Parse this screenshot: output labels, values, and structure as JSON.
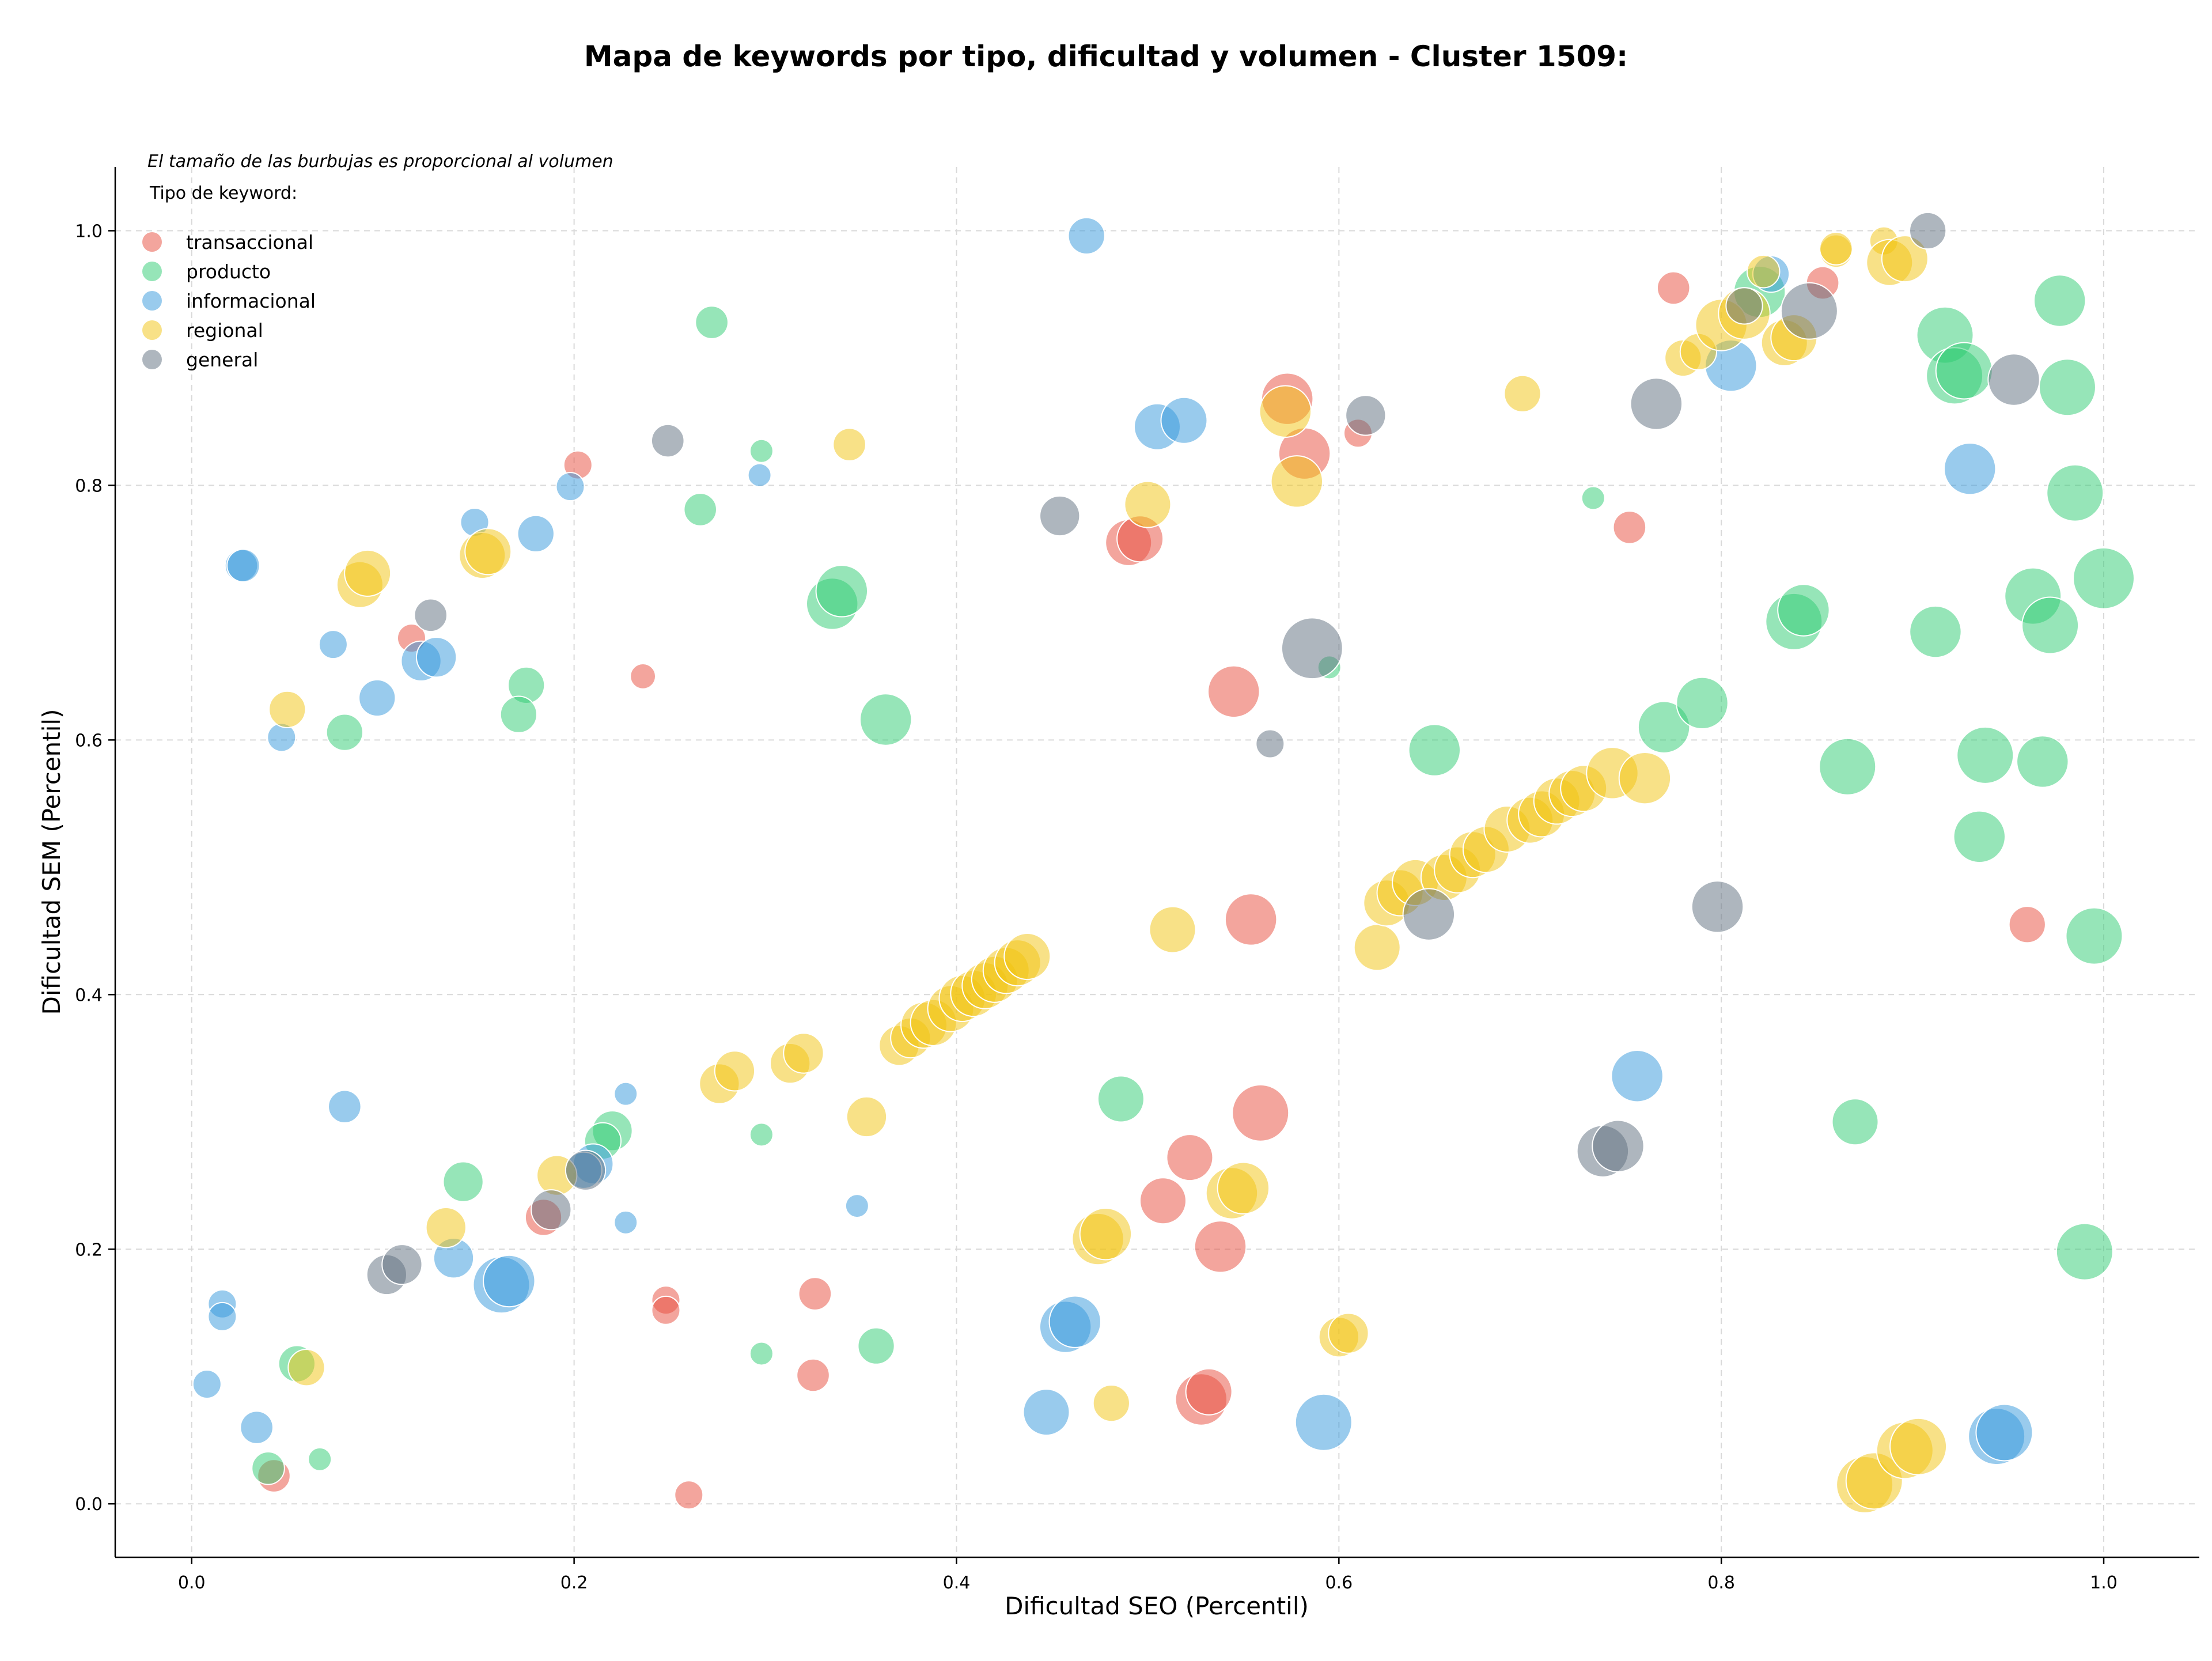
{
  "chart_data": {
    "type": "scatter",
    "title": "Mapa de keywords por tipo, dificultad y volumen - Cluster 1509:",
    "xlabel": "Dificultad SEO (Percentil)",
    "ylabel": "Dificultad SEM (Percentil)",
    "xlim": [
      -0.04,
      1.05
    ],
    "ylim": [
      -0.042,
      1.05
    ],
    "xticks": [
      "0.0",
      "0.2",
      "0.4",
      "0.6",
      "0.8",
      "1.0"
    ],
    "yticks": [
      "0.0",
      "0.2",
      "0.4",
      "0.6",
      "0.8",
      "1.0"
    ],
    "grid": true,
    "size_note": "El tamaño de las burbujas es proporcional al volumen",
    "legend_title": "Tipo de keyword:",
    "legend_position": "top-left",
    "series": [
      {
        "name": "transaccional",
        "color": "#e74c3c",
        "points": [
          [
            0.202,
            0.816,
            1.5
          ],
          [
            0.115,
            0.68,
            1.5
          ],
          [
            0.236,
            0.65,
            1.2
          ],
          [
            0.043,
            0.022,
            2
          ],
          [
            0.184,
            0.225,
            2.5
          ],
          [
            0.248,
            0.16,
            1.5
          ],
          [
            0.248,
            0.152,
            1.5
          ],
          [
            0.326,
            0.165,
            2
          ],
          [
            0.26,
            0.007,
            1.5
          ],
          [
            0.325,
            0.101,
            2
          ],
          [
            0.508,
            0.238,
            4
          ],
          [
            0.522,
            0.272,
            4
          ],
          [
            0.538,
            0.202,
            5
          ],
          [
            0.528,
            0.082,
            5
          ],
          [
            0.532,
            0.088,
            4
          ],
          [
            0.545,
            0.638,
            5
          ],
          [
            0.554,
            0.459,
            5
          ],
          [
            0.559,
            0.307,
            6
          ],
          [
            0.49,
            0.755,
            4
          ],
          [
            0.496,
            0.758,
            4
          ],
          [
            0.573,
            0.868,
            5
          ],
          [
            0.582,
            0.825,
            5
          ],
          [
            0.61,
            0.841,
            1.5
          ],
          [
            0.752,
            0.767,
            2
          ],
          [
            0.775,
            0.955,
            2
          ],
          [
            0.853,
            0.959,
            2
          ],
          [
            0.96,
            0.455,
            2.5
          ]
        ]
      },
      {
        "name": "producto",
        "color": "#2ecc71",
        "points": [
          [
            0.272,
            0.928,
            2
          ],
          [
            0.298,
            0.827,
            1
          ],
          [
            0.266,
            0.781,
            2
          ],
          [
            0.175,
            0.643,
            2.5
          ],
          [
            0.08,
            0.606,
            2.5
          ],
          [
            0.171,
            0.62,
            2.5
          ],
          [
            0.335,
            0.707,
            5
          ],
          [
            0.34,
            0.717,
            5
          ],
          [
            0.363,
            0.616,
            5
          ],
          [
            0.142,
            0.253,
            3
          ],
          [
            0.22,
            0.293,
            3
          ],
          [
            0.215,
            0.285,
            2.5
          ],
          [
            0.298,
            0.29,
            1
          ],
          [
            0.298,
            0.118,
            1
          ],
          [
            0.358,
            0.124,
            2.5
          ],
          [
            0.055,
            0.11,
            2.5
          ],
          [
            0.04,
            0.028,
            2
          ],
          [
            0.067,
            0.035,
            1
          ],
          [
            0.486,
            0.318,
            4
          ],
          [
            0.595,
            0.657,
            1
          ],
          [
            0.65,
            0.592,
            5
          ],
          [
            0.733,
            0.79,
            1
          ],
          [
            0.77,
            0.61,
            5
          ],
          [
            0.79,
            0.629,
            5
          ],
          [
            0.82,
            0.952,
            5
          ],
          [
            0.838,
            0.693,
            6
          ],
          [
            0.843,
            0.702,
            5
          ],
          [
            0.866,
            0.579,
            6
          ],
          [
            0.87,
            0.3,
            4
          ],
          [
            0.912,
            0.685,
            5
          ],
          [
            0.917,
            0.918,
            6
          ],
          [
            0.922,
            0.886,
            6
          ],
          [
            0.927,
            0.89,
            6
          ],
          [
            0.935,
            0.524,
            5
          ],
          [
            0.938,
            0.588,
            6
          ],
          [
            0.963,
            0.713,
            6
          ],
          [
            0.968,
            0.583,
            5
          ],
          [
            0.972,
            0.69,
            6
          ],
          [
            0.977,
            0.945,
            5
          ],
          [
            0.981,
            0.877,
            6
          ],
          [
            0.985,
            0.794,
            6
          ],
          [
            0.99,
            0.198,
            6
          ],
          [
            0.995,
            0.446,
            6
          ],
          [
            1.0,
            0.727,
            7
          ]
        ]
      },
      {
        "name": "informacional",
        "color": "#3498db",
        "points": [
          [
            0.026,
            0.737,
            2
          ],
          [
            0.027,
            0.737,
            2
          ],
          [
            0.074,
            0.675,
            1.5
          ],
          [
            0.047,
            0.602,
            1.5
          ],
          [
            0.097,
            0.633,
            2.5
          ],
          [
            0.12,
            0.662,
            3
          ],
          [
            0.128,
            0.665,
            3
          ],
          [
            0.148,
            0.771,
            1.5
          ],
          [
            0.18,
            0.762,
            2.5
          ],
          [
            0.198,
            0.799,
            1.5
          ],
          [
            0.297,
            0.808,
            1
          ],
          [
            0.468,
            0.996,
            2.5
          ],
          [
            0.08,
            0.312,
            2
          ],
          [
            0.016,
            0.157,
            1.5
          ],
          [
            0.016,
            0.147,
            1.5
          ],
          [
            0.008,
            0.094,
            1.5
          ],
          [
            0.034,
            0.06,
            2
          ],
          [
            0.137,
            0.193,
            3
          ],
          [
            0.162,
            0.172,
            6
          ],
          [
            0.166,
            0.175,
            5
          ],
          [
            0.21,
            0.267,
            3
          ],
          [
            0.205,
            0.262,
            2.5
          ],
          [
            0.227,
            0.322,
            1
          ],
          [
            0.227,
            0.221,
            1
          ],
          [
            0.348,
            0.234,
            1
          ],
          [
            0.447,
            0.072,
            4
          ],
          [
            0.457,
            0.139,
            5
          ],
          [
            0.462,
            0.143,
            5
          ],
          [
            0.505,
            0.846,
            4
          ],
          [
            0.519,
            0.851,
            4
          ],
          [
            0.592,
            0.064,
            6
          ],
          [
            0.756,
            0.336,
            5
          ],
          [
            0.805,
            0.894,
            5
          ],
          [
            0.826,
            0.966,
            2.5
          ],
          [
            0.93,
            0.813,
            5
          ],
          [
            0.944,
            0.053,
            6
          ],
          [
            0.948,
            0.056,
            6
          ]
        ]
      },
      {
        "name": "regional",
        "color": "#f1c40f",
        "points": [
          [
            0.088,
            0.722,
            4
          ],
          [
            0.092,
            0.731,
            4
          ],
          [
            0.05,
            0.624,
            2.5
          ],
          [
            0.152,
            0.745,
            4
          ],
          [
            0.155,
            0.748,
            4
          ],
          [
            0.344,
            0.832,
            2
          ],
          [
            0.06,
            0.107,
            2.5
          ],
          [
            0.133,
            0.217,
            3
          ],
          [
            0.191,
            0.258,
            3
          ],
          [
            0.276,
            0.33,
            3
          ],
          [
            0.284,
            0.34,
            3
          ],
          [
            0.313,
            0.346,
            3
          ],
          [
            0.32,
            0.354,
            3
          ],
          [
            0.353,
            0.304,
            3
          ],
          [
            0.37,
            0.36,
            3
          ],
          [
            0.376,
            0.366,
            3
          ],
          [
            0.383,
            0.376,
            4
          ],
          [
            0.388,
            0.378,
            4
          ],
          [
            0.397,
            0.389,
            4
          ],
          [
            0.403,
            0.397,
            4
          ],
          [
            0.409,
            0.401,
            4
          ],
          [
            0.415,
            0.407,
            4
          ],
          [
            0.42,
            0.412,
            4
          ],
          [
            0.426,
            0.419,
            4
          ],
          [
            0.432,
            0.425,
            4
          ],
          [
            0.437,
            0.43,
            4
          ],
          [
            0.474,
            0.208,
            5
          ],
          [
            0.478,
            0.212,
            5
          ],
          [
            0.481,
            0.079,
            2.5
          ],
          [
            0.5,
            0.785,
            4
          ],
          [
            0.513,
            0.451,
            4
          ],
          [
            0.544,
            0.244,
            5
          ],
          [
            0.55,
            0.248,
            5
          ],
          [
            0.572,
            0.858,
            5
          ],
          [
            0.578,
            0.803,
            5
          ],
          [
            0.6,
            0.131,
            3
          ],
          [
            0.605,
            0.134,
            3
          ],
          [
            0.62,
            0.437,
            4
          ],
          [
            0.625,
            0.472,
            4
          ],
          [
            0.632,
            0.48,
            4
          ],
          [
            0.64,
            0.488,
            4
          ],
          [
            0.655,
            0.492,
            4
          ],
          [
            0.662,
            0.498,
            4
          ],
          [
            0.67,
            0.51,
            4
          ],
          [
            0.677,
            0.514,
            4
          ],
          [
            0.688,
            0.53,
            4
          ],
          [
            0.7,
            0.537,
            4
          ],
          [
            0.706,
            0.542,
            4
          ],
          [
            0.714,
            0.552,
            4
          ],
          [
            0.722,
            0.558,
            4
          ],
          [
            0.728,
            0.562,
            4
          ],
          [
            0.743,
            0.574,
            5
          ],
          [
            0.76,
            0.57,
            5
          ],
          [
            0.696,
            0.872,
            2.5
          ],
          [
            0.78,
            0.9,
            2.5
          ],
          [
            0.788,
            0.905,
            2.5
          ],
          [
            0.8,
            0.926,
            5
          ],
          [
            0.812,
            0.935,
            5
          ],
          [
            0.822,
            0.968,
            2
          ],
          [
            0.833,
            0.912,
            4
          ],
          [
            0.838,
            0.916,
            4
          ],
          [
            0.86,
            0.984,
            2
          ],
          [
            0.86,
            0.986,
            2
          ],
          [
            0.885,
            0.992,
            1.5
          ],
          [
            0.888,
            0.975,
            4
          ],
          [
            0.896,
            0.978,
            4
          ],
          [
            0.875,
            0.015,
            6
          ],
          [
            0.88,
            0.018,
            6
          ],
          [
            0.896,
            0.042,
            6
          ],
          [
            0.903,
            0.045,
            6
          ]
        ]
      },
      {
        "name": "general",
        "color": "#5d6d7e",
        "points": [
          [
            0.125,
            0.698,
            2
          ],
          [
            0.249,
            0.835,
            2
          ],
          [
            0.102,
            0.18,
            3
          ],
          [
            0.11,
            0.188,
            3
          ],
          [
            0.188,
            0.231,
            3
          ],
          [
            0.206,
            0.262,
            3
          ],
          [
            0.454,
            0.776,
            3
          ],
          [
            0.564,
            0.597,
            1.5
          ],
          [
            0.586,
            0.672,
            7
          ],
          [
            0.614,
            0.855,
            3
          ],
          [
            0.647,
            0.463,
            5
          ],
          [
            0.738,
            0.277,
            5
          ],
          [
            0.746,
            0.281,
            5
          ],
          [
            0.766,
            0.864,
            5
          ],
          [
            0.798,
            0.469,
            5
          ],
          [
            0.812,
            0.941,
            2.5
          ],
          [
            0.846,
            0.937,
            6
          ],
          [
            0.908,
            1.0,
            2.5
          ],
          [
            0.953,
            0.883,
            5
          ]
        ]
      }
    ]
  }
}
